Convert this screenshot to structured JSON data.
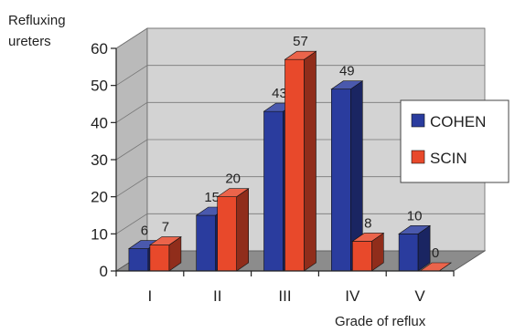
{
  "chart_data": {
    "type": "bar",
    "title": "",
    "ylabel": "Refluxing ureters",
    "ylabel_lines": [
      "Refluxing",
      "ureters"
    ],
    "xlabel": "Grade of reflux",
    "categories": [
      "I",
      "II",
      "III",
      "IV",
      "V"
    ],
    "series": [
      {
        "name": "COHEN",
        "values": [
          6,
          15,
          43,
          49,
          10
        ],
        "color": "#2a3c9e"
      },
      {
        "name": "SCIN",
        "values": [
          7,
          20,
          57,
          8,
          0
        ],
        "color": "#e8492b"
      }
    ],
    "ylim": [
      0,
      60
    ],
    "yticks": [
      0,
      10,
      20,
      30,
      40,
      50,
      60
    ],
    "grid": true,
    "legend_position": "right",
    "style": "3d-bar",
    "wall_color": "#d3d3d3",
    "floor_color": "#8c8c8c"
  }
}
